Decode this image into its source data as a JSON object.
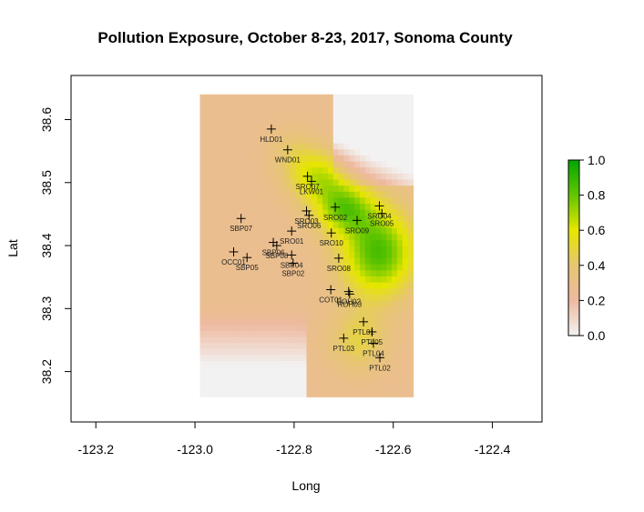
{
  "chart_data": {
    "type": "heatmap",
    "title": "Pollution Exposure, October 8-23, 2017, Sonoma County",
    "xlabel": "Long",
    "ylabel": "Lat",
    "xlim": [
      -123.25,
      -122.3
    ],
    "ylim": [
      38.12,
      38.67
    ],
    "grid_extent": {
      "lon": [
        -122.99,
        -122.56
      ],
      "lat": [
        38.16,
        38.64
      ]
    },
    "x_ticks": [
      {
        "value": -123.2,
        "label": "-123.2"
      },
      {
        "value": -123.0,
        "label": "-123.0"
      },
      {
        "value": -122.8,
        "label": "-122.8"
      },
      {
        "value": -122.6,
        "label": "-122.6"
      },
      {
        "value": -122.4,
        "label": "-122.4"
      }
    ],
    "y_ticks": [
      {
        "value": 38.2,
        "label": "38.2"
      },
      {
        "value": 38.3,
        "label": "38.3"
      },
      {
        "value": 38.4,
        "label": "38.4"
      },
      {
        "value": 38.5,
        "label": "38.5"
      },
      {
        "value": 38.6,
        "label": "38.6"
      }
    ],
    "legend": {
      "placement": "right",
      "range": [
        0,
        1
      ],
      "ticks": [
        {
          "value": 1.0,
          "label": "1.0"
        },
        {
          "value": 0.8,
          "label": "0.8"
        },
        {
          "value": 0.6,
          "label": "0.6"
        },
        {
          "value": 0.4,
          "label": "0.4"
        },
        {
          "value": 0.2,
          "label": "0.2"
        },
        {
          "value": 0.0,
          "label": "0.0"
        }
      ],
      "colors": [
        "#f2f2f2",
        "#eeb99f",
        "#e6c672",
        "#e6e600",
        "#63c600",
        "#00a600"
      ]
    },
    "stations": [
      {
        "name": "HLD01",
        "lon": -122.846,
        "lat": 38.585
      },
      {
        "name": "WND01",
        "lon": -122.813,
        "lat": 38.552
      },
      {
        "name": "SRO07",
        "lon": -122.773,
        "lat": 38.51
      },
      {
        "name": "LKW01",
        "lon": -122.765,
        "lat": 38.502
      },
      {
        "name": "SRO02",
        "lon": -122.717,
        "lat": 38.461
      },
      {
        "name": "SRO04",
        "lon": -122.628,
        "lat": 38.463
      },
      {
        "name": "SRO05",
        "lon": -122.623,
        "lat": 38.451
      },
      {
        "name": "SRO03",
        "lon": -122.775,
        "lat": 38.455
      },
      {
        "name": "SRO06",
        "lon": -122.77,
        "lat": 38.448
      },
      {
        "name": "SRO09",
        "lon": -122.673,
        "lat": 38.44
      },
      {
        "name": "SBP07",
        "lon": -122.907,
        "lat": 38.443
      },
      {
        "name": "SRO01",
        "lon": -122.805,
        "lat": 38.423
      },
      {
        "name": "SRO10",
        "lon": -122.725,
        "lat": 38.42
      },
      {
        "name": "SBP06",
        "lon": -122.842,
        "lat": 38.405
      },
      {
        "name": "SBP08",
        "lon": -122.835,
        "lat": 38.4
      },
      {
        "name": "OCC01",
        "lon": -122.922,
        "lat": 38.39
      },
      {
        "name": "SBP05",
        "lon": -122.895,
        "lat": 38.381
      },
      {
        "name": "SBP04",
        "lon": -122.805,
        "lat": 38.385
      },
      {
        "name": "SBP02",
        "lon": -122.802,
        "lat": 38.372
      },
      {
        "name": "SRO08",
        "lon": -122.71,
        "lat": 38.38
      },
      {
        "name": "COT01",
        "lon": -122.726,
        "lat": 38.33
      },
      {
        "name": "ROH02",
        "lon": -122.69,
        "lat": 38.327
      },
      {
        "name": "ROH03",
        "lon": -122.688,
        "lat": 38.323
      },
      {
        "name": "PTL01",
        "lon": -122.66,
        "lat": 38.279
      },
      {
        "name": "PTL05",
        "lon": -122.643,
        "lat": 38.263
      },
      {
        "name": "PTL03",
        "lon": -122.7,
        "lat": 38.253
      },
      {
        "name": "PTL04",
        "lon": -122.64,
        "lat": 38.245
      },
      {
        "name": "PTL02",
        "lon": -122.627,
        "lat": 38.222
      }
    ],
    "surface_sources": [
      {
        "lon": -122.63,
        "lat": 38.39,
        "amp": 0.58,
        "sx": 0.075,
        "sy": 0.07
      },
      {
        "lon": -122.7,
        "lat": 38.46,
        "amp": 0.45,
        "sx": 0.06,
        "sy": 0.04
      },
      {
        "lon": -122.75,
        "lat": 38.51,
        "amp": 0.35,
        "sx": 0.06,
        "sy": 0.04
      },
      {
        "lon": -122.67,
        "lat": 38.25,
        "amp": 0.2,
        "sx": 0.06,
        "sy": 0.05
      },
      {
        "lon": -122.8,
        "lat": 38.55,
        "amp": 0.12,
        "sx": 0.05,
        "sy": 0.04
      }
    ],
    "surface_base": 0.27
  }
}
